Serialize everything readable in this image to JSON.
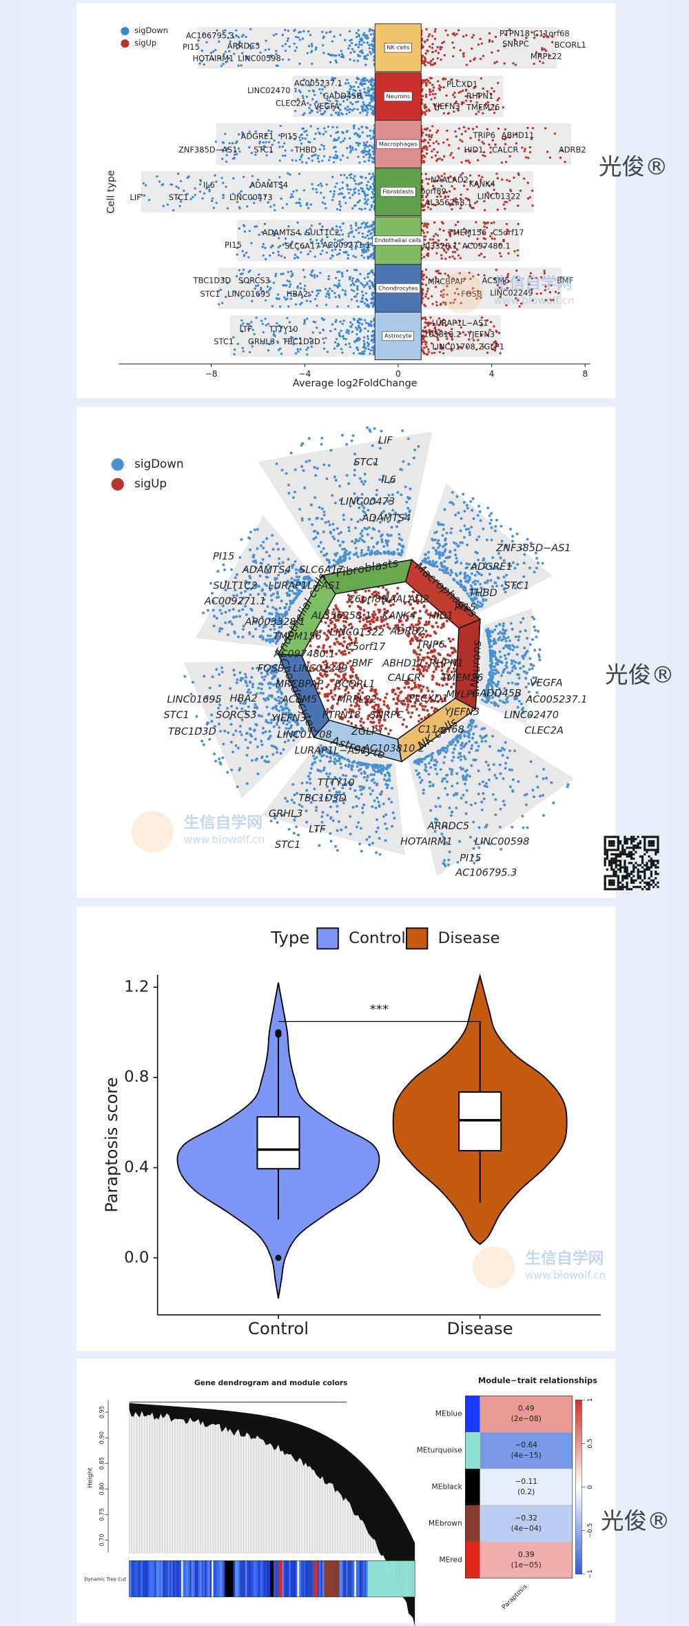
{
  "watermark": "光俊®",
  "site_watermark": {
    "name": "生信自学网",
    "url": "www.biowolf.cn"
  },
  "chart_data": [
    {
      "type": "strip",
      "y_label": "Cell type",
      "x_label": "Average log2FoldChange",
      "series": [
        {
          "name": "sigDown",
          "color": "#3b88d6"
        },
        {
          "name": "sigUp",
          "color": "#b8352b"
        }
      ],
      "cell_types": [
        "NK cells",
        "Neurons",
        "Macrophages",
        "Fibroblasts",
        "Endothelial cells",
        "Chondrocytes",
        "Astrocyte"
      ],
      "colors": [
        "#f2c46d",
        "#c9302c",
        "#dc8d8d",
        "#5fa04a",
        "#80bb63",
        "#4b76b4",
        "#aac9e8"
      ],
      "ranges": [
        [
          -8.6,
          6.8
        ],
        [
          -4.5,
          4.5
        ],
        [
          -7.8,
          7.4
        ],
        [
          -11,
          5.8
        ],
        [
          -6.9,
          5.2
        ],
        [
          -7.7,
          7
        ],
        [
          -7.2,
          4.4
        ]
      ],
      "xlim": [
        -11.96,
        8.22
      ],
      "xticks": [
        {
          "value": -8,
          "label": "−8"
        },
        {
          "value": -4,
          "label": "−4"
        },
        0,
        4,
        8
      ],
      "gene_labels": [
        "AC106795.3",
        "PI15",
        "ARRDC5",
        "HOTAIRM1",
        "LINC00598",
        "PTPN18",
        "C11orf68",
        "SNRPC",
        "BCORL1",
        "MRPL22",
        "AC005237.1",
        "LINC02470",
        "GADD45B",
        "CLEC2A",
        "VEGFA",
        "PLCXD1",
        "RHPN1",
        "YJEFN3",
        "TMEM26",
        "ADGRE1",
        "PI15",
        "ZNF385D−AS1",
        "STC1",
        "THBD",
        "TRIP6",
        "ABHD11",
        "HID1",
        "CALCR",
        "ADRB2",
        "IL6",
        "ADAMTS4",
        "LIF",
        "STC1",
        "LINC00473",
        "NAALAD2",
        "KANK4",
        "C6orf89",
        "LINC01322",
        "AL356258.1",
        "ADAMTS4",
        "SULT1C2",
        "PI15",
        "SLC6A17",
        "AC009271.1",
        "TMEM156",
        "C5orf17",
        "AP003328.1",
        "AC097480.1",
        "TBC1D3D",
        "SORCS3",
        "STC1",
        "LINC01695",
        "HBA2",
        "MRCBPAP",
        "ACSM5",
        "BMF",
        "FOSB",
        "LINC02249",
        "LTF",
        "TTTY10",
        "STC1",
        "GRHL3",
        "TBC1D3D",
        "LURAP1L−AS1",
        "AC103810.2",
        "YJEFN3",
        "LINC01708",
        "ZGLP1"
      ]
    },
    {
      "type": "radial",
      "series": [
        {
          "name": "sigDown",
          "color": "#4a90d4"
        },
        {
          "name": "sigUp",
          "color": "#b8352b"
        }
      ],
      "cell_types": [
        "NK cells",
        "Neurons",
        "Macrophages",
        "Fibroblasts",
        "Endothelial cells",
        "Chondrocytes",
        "Astrocyte"
      ],
      "colors": [
        "#e9bd6a",
        "#b3302a",
        "#c23b2f",
        "#6aa84f",
        "#7fbf63",
        "#4a74b1",
        "#a9c8e6"
      ],
      "gene_labels": [
        "LIF",
        "STC1",
        "IL6",
        "LINC00473",
        "ADAMTS4",
        "ZNF385D−AS1",
        "ADGRE1",
        "STC1",
        "THBD",
        "PI15",
        "PI15",
        "ADAMTS4",
        "SLC6A17",
        "SULT1C2",
        "LURAP1L−AS1",
        "AC009271.1",
        "AP003328.1",
        "TMEM156",
        "AL356258.1",
        "C6orf89",
        "NAALAD2",
        "KANK4",
        "HID1",
        "ADRB2",
        "TRIP6",
        "LINC01322",
        "C5orf17",
        "AC097480.1",
        "BMF",
        "ABHD11",
        "RHPN1",
        "CALCR",
        "TMEM26",
        "FOSB",
        "LINC02249",
        "MRCBPAP",
        "BCORL1",
        "PLCXD1",
        "MYLPF",
        "VEGFA",
        "GADD45B",
        "AC005237.1",
        "YJEFN3",
        "LINC02470",
        "CLEC2A",
        "ACSM5",
        "MRPL22",
        "YJEFN3",
        "PTPN18",
        "SNRPC",
        "C11orf68",
        "ZGLP1",
        "AC103810.2",
        "LINC01708",
        "LURAP1L−AS1",
        "HBA2",
        "LINC01695",
        "STC1",
        "SORCS3",
        "TBC1D3D",
        "TTTY10",
        "TBC1D3D",
        "GRHL3",
        "LTF",
        "STC1",
        "ARRDC5",
        "LINC00598",
        "HOTAIRM1",
        "PI15",
        "AC106795.3"
      ]
    },
    {
      "type": "violin",
      "y_label": "Paraptosis score",
      "legend_title": "Type",
      "significance": "***",
      "ylim": [
        -0.253,
        1.255
      ],
      "yticks": [
        {
          "value": 0,
          "label": "0.0"
        },
        0.4,
        0.8,
        1.2
      ],
      "groups": [
        {
          "name": "Control",
          "color": "#7b96f5",
          "whisker_low": 0.17,
          "q1": 0.395,
          "median": 0.48,
          "q3": 0.625,
          "whisker_high": 0.98,
          "outliers": [
            1.0,
            0.99,
            0.0
          ],
          "density_y": [
            -0.18,
            -0.1,
            0,
            0.1,
            0.2,
            0.3,
            0.4,
            0.5,
            0.6,
            0.7,
            0.8,
            0.9,
            1.0,
            1.1,
            1.22
          ],
          "density": [
            0,
            0.03,
            0.07,
            0.2,
            0.5,
            0.84,
            1,
            0.95,
            0.55,
            0.25,
            0.16,
            0.11,
            0.09,
            0.05,
            0
          ]
        },
        {
          "name": "Disease",
          "color": "#c55a11",
          "whisker_low": 0.245,
          "q1": 0.475,
          "median": 0.61,
          "q3": 0.735,
          "whisker_high": 1.05,
          "outliers": [],
          "density_y": [
            0.06,
            0.1,
            0.2,
            0.3,
            0.4,
            0.5,
            0.6,
            0.7,
            0.8,
            0.9,
            1.0,
            1.1,
            1.2,
            1.25
          ],
          "density": [
            0,
            0.09,
            0.21,
            0.4,
            0.65,
            0.83,
            0.87,
            0.83,
            0.65,
            0.35,
            0.16,
            0.09,
            0.03,
            0
          ]
        }
      ]
    },
    {
      "type": "wgcna",
      "title": "Gene dendrogram and module colors",
      "y_label": "Height",
      "color_bar_label": "Dynamic Tree Cut",
      "ylim": [
        0.676,
        0.974
      ],
      "yticks": [
        {
          "value": 0.7,
          "label": "0.70"
        },
        0.75,
        {
          "value": 0.8,
          "label": "0.80"
        },
        0.85,
        {
          "value": 0.9,
          "label": "0.90"
        },
        0.95
      ],
      "heatmap_title": "Module−trait relationships",
      "x_label": "Paraptosis",
      "rows": [
        "MEblue",
        "MEturquoise",
        "MEblack",
        "MEbrown",
        "MEred"
      ],
      "module_colors": [
        "#1d3bff",
        "#8fe0d2",
        "#000000",
        "#8b3a2e",
        "#e0251b"
      ],
      "values": [
        0.49,
        -0.64,
        -0.11,
        -0.32,
        0.39
      ],
      "value_labels": [
        "0.49",
        "−0.64",
        "−0.11",
        "−0.32",
        "0.39"
      ],
      "p_labels": [
        "(2e−08)",
        "(4e−15)",
        "(0.2)",
        "(4e−04)",
        "(1e−05)"
      ],
      "colorbar_lim": [
        -1,
        1
      ],
      "colorbar_ticks": [
        {
          "value": -1,
          "label": "−1"
        },
        {
          "value": -0.5,
          "label": "−0.5"
        },
        0,
        0.5,
        1
      ]
    }
  ]
}
